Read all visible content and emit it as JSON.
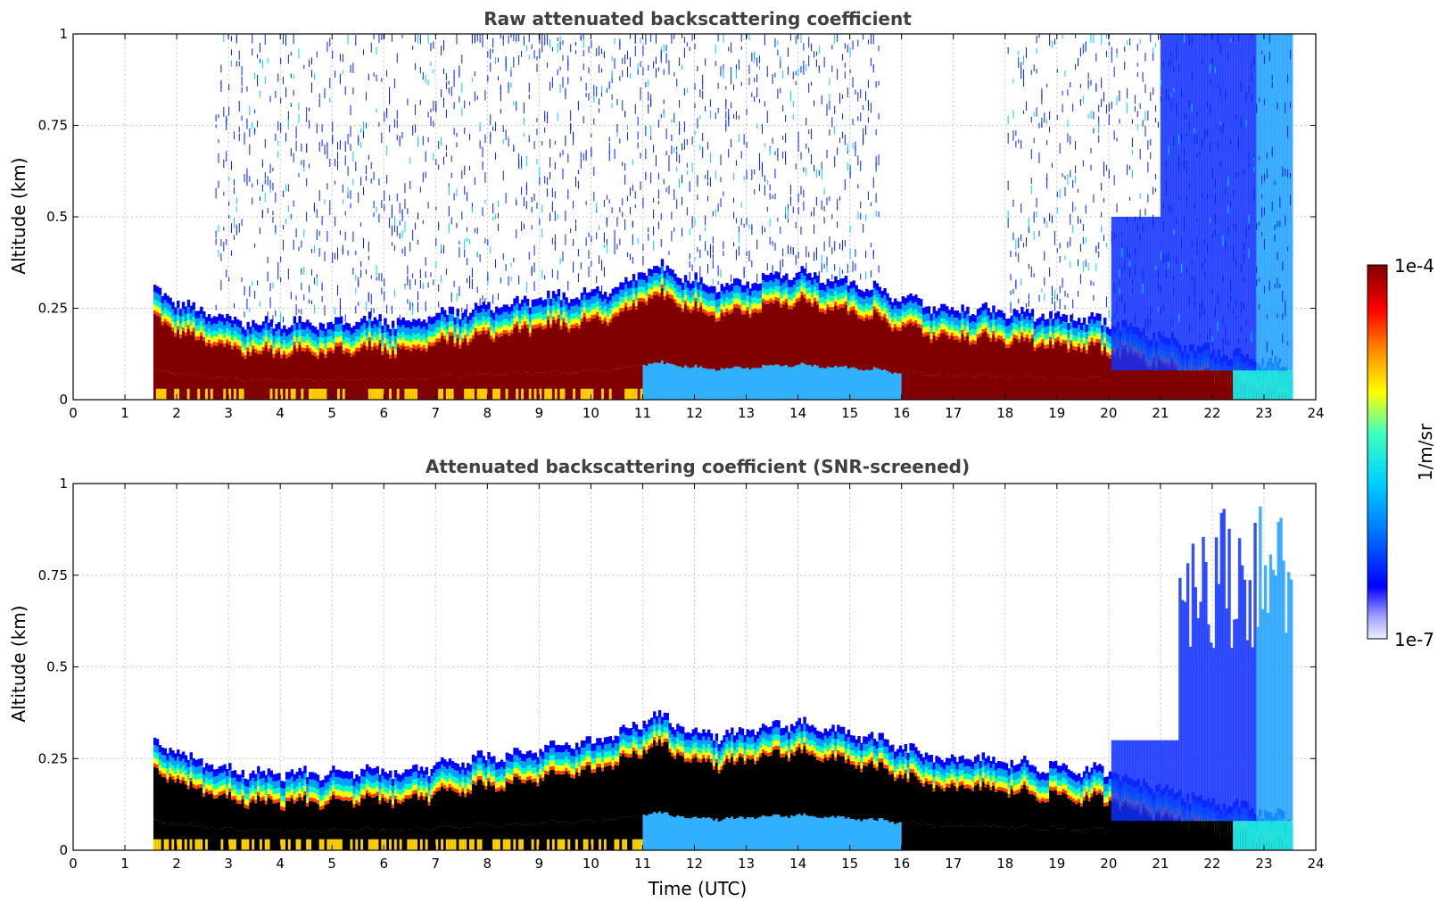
{
  "chart_data": [
    {
      "type": "heatmap",
      "title": "Raw attenuated backscattering coefficient",
      "xlabel": "",
      "ylabel": "Altitude (km)",
      "xlim": [
        0,
        24
      ],
      "ylim": [
        0,
        1
      ],
      "x_ticks": [
        "0",
        "1",
        "2",
        "3",
        "4",
        "5",
        "6",
        "7",
        "8",
        "9",
        "10",
        "11",
        "12",
        "13",
        "14",
        "15",
        "16",
        "17",
        "18",
        "19",
        "20",
        "21",
        "22",
        "23",
        "24"
      ],
      "y_ticks": [
        "0",
        "0.25",
        "0.5",
        "0.75",
        "1"
      ],
      "grid": true,
      "data_range_time": [
        1.55,
        23.55
      ],
      "layer_top_km": [
        0.27,
        0.22,
        0.19,
        0.18,
        0.18,
        0.18,
        0.19,
        0.18,
        0.2,
        0.22,
        0.23,
        0.25,
        0.26,
        0.28,
        0.34,
        0.3,
        0.28,
        0.3,
        0.32,
        0.3,
        0.28,
        0.25,
        0.22,
        0.22,
        0.21,
        0.2,
        0.19,
        0.18,
        0.15,
        0.12,
        0.1,
        0.08,
        0.05
      ],
      "noise_above_layer": "present"
    },
    {
      "type": "heatmap",
      "title": "Attenuated backscattering coefficient (SNR-screened)",
      "xlabel": "Time (UTC)",
      "ylabel": "Altitude (km)",
      "xlim": [
        0,
        24
      ],
      "ylim": [
        0,
        1
      ],
      "x_ticks": [
        "0",
        "1",
        "2",
        "3",
        "4",
        "5",
        "6",
        "7",
        "8",
        "9",
        "10",
        "11",
        "12",
        "13",
        "14",
        "15",
        "16",
        "17",
        "18",
        "19",
        "20",
        "21",
        "22",
        "23",
        "24"
      ],
      "y_ticks": [
        "0",
        "0.25",
        "0.5",
        "0.75",
        "1"
      ],
      "grid": true,
      "data_range_time": [
        1.55,
        23.55
      ],
      "layer_top_km": [
        0.27,
        0.22,
        0.19,
        0.18,
        0.18,
        0.18,
        0.19,
        0.18,
        0.2,
        0.22,
        0.23,
        0.25,
        0.26,
        0.28,
        0.34,
        0.3,
        0.28,
        0.3,
        0.32,
        0.3,
        0.28,
        0.25,
        0.22,
        0.22,
        0.21,
        0.2,
        0.19,
        0.18,
        0.15,
        0.12,
        0.1,
        0.08,
        0.05
      ],
      "noise_above_layer": "screened"
    }
  ],
  "colorbar": {
    "label": "1/m/sr",
    "max_label": "1e-4",
    "min_label": "1e-7",
    "scale": "log",
    "range": [
      1e-07,
      0.0001
    ],
    "colors": [
      "#e8e8ff",
      "#0000ff",
      "#00a0ff",
      "#00ffff",
      "#80ff80",
      "#ffff00",
      "#ff8000",
      "#ff0000",
      "#800000"
    ]
  }
}
